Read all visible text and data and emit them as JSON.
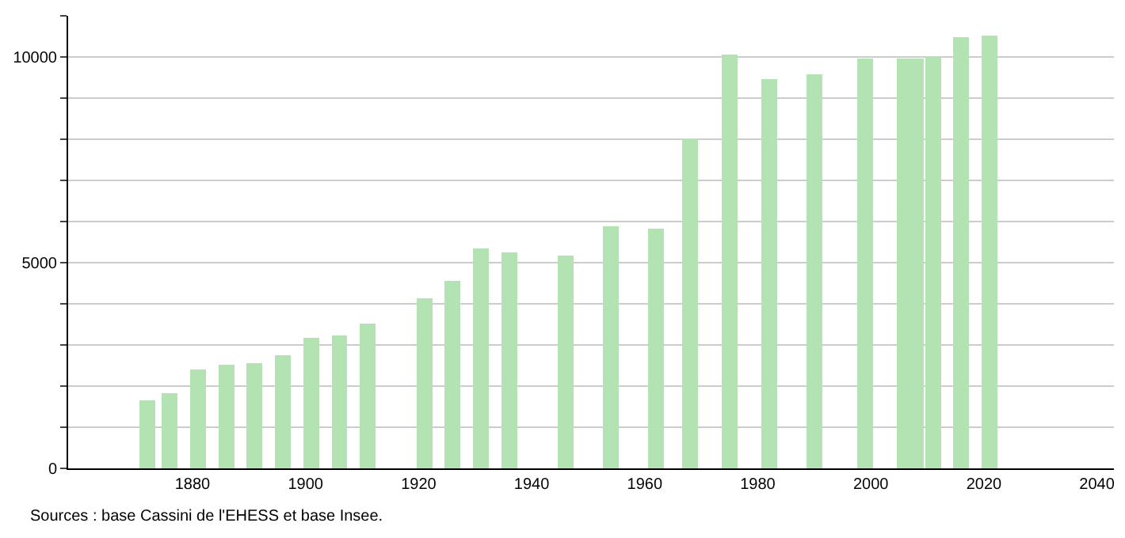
{
  "chart_data": {
    "type": "bar",
    "x": [
      1872,
      1876,
      1881,
      1886,
      1891,
      1896,
      1901,
      1906,
      1911,
      1921,
      1926,
      1931,
      1936,
      1946,
      1954,
      1962,
      1968,
      1975,
      1982,
      1990,
      1999,
      2006,
      2008,
      2011,
      2016,
      2021
    ],
    "values": [
      1650,
      1830,
      2410,
      2510,
      2560,
      2750,
      3170,
      3230,
      3520,
      4140,
      4560,
      5350,
      5250,
      5180,
      5890,
      5820,
      8020,
      10050,
      9470,
      9570,
      9970,
      9970,
      9970,
      10010,
      10490,
      10520
    ],
    "color": "#b3e3b3",
    "xlim": [
      1858,
      2043
    ],
    "xticks": [
      1880,
      1900,
      1920,
      1940,
      1960,
      1980,
      2000,
      2020,
      2040
    ],
    "ylim": [
      0,
      11000
    ],
    "yticks": [
      0,
      {
        "value": 1000,
        "label": null
      },
      {
        "value": 2000,
        "label": null
      },
      {
        "value": 3000,
        "label": null
      },
      {
        "value": 4000,
        "label": null
      },
      5000,
      {
        "value": 6000,
        "label": null
      },
      {
        "value": 7000,
        "label": null
      },
      {
        "value": 8000,
        "label": null
      },
      {
        "value": 9000,
        "label": null
      },
      10000,
      {
        "value": 11000,
        "label": null
      }
    ],
    "grid": "y",
    "annotations": [
      "Sources : base Cassini de l'EHESS et base Insee."
    ]
  }
}
